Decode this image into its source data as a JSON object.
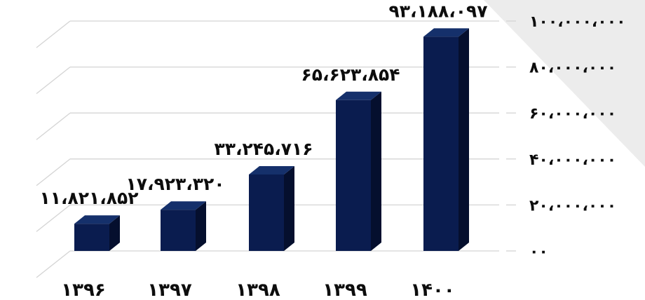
{
  "chart_data": {
    "type": "bar",
    "title": "",
    "xlabel": "",
    "ylabel": "",
    "categories": [
      "۱۳۹۶",
      "۱۳۹۷",
      "۱۳۹۸",
      "۱۳۹۹",
      "۱۴۰۰"
    ],
    "values": [
      11821852,
      17923320,
      33245716,
      65623854,
      93188097
    ],
    "data_labels": [
      "۱۱،۸۲۱،۸۵۲",
      "۱۷،۹۲۳،۳۲۰",
      "۳۳،۲۴۵،۷۱۶",
      "۶۵،۶۲۳،۸۵۴",
      "۹۳،۱۸۸،۰۹۷"
    ],
    "y_ticks": [
      0,
      20000000,
      40000000,
      60000000,
      80000000,
      100000000
    ],
    "y_tick_labels": [
      "۰۰",
      "۲۰،۰۰۰،۰۰۰",
      "۴۰،۰۰۰،۰۰۰",
      "۶۰،۰۰۰،۰۰۰",
      "۸۰،۰۰۰،۰۰۰",
      "۱۰۰،۰۰۰،۰۰۰"
    ],
    "ylim": [
      0,
      100000000
    ],
    "grid": true,
    "legend": "none",
    "colors": {
      "bar_front": "#0a1c4f",
      "bar_top": "#15306b",
      "bar_side": "#050f2e",
      "gridline": "#d4d4d4",
      "background_shape": "#ececec",
      "text": "#0d0d0d"
    }
  }
}
